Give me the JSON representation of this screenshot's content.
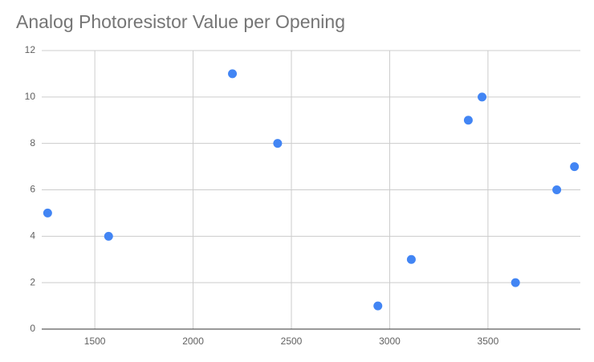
{
  "chart_data": {
    "type": "scatter",
    "title": "Analog Photoresistor Value per Opening",
    "x": [
      1260,
      1570,
      2200,
      2430,
      2940,
      3110,
      3400,
      3470,
      3640,
      3850,
      3940
    ],
    "values": [
      5,
      4,
      11,
      8,
      1,
      3,
      9,
      10,
      2,
      6,
      7
    ],
    "color": "#4285f4",
    "xlim": [
      1230,
      3970
    ],
    "xticks": [
      1500,
      2000,
      2500,
      3000,
      3500
    ],
    "ylim": [
      0,
      12
    ],
    "yticks": [
      0,
      2,
      4,
      6,
      8,
      10,
      12
    ],
    "grid": true
  }
}
